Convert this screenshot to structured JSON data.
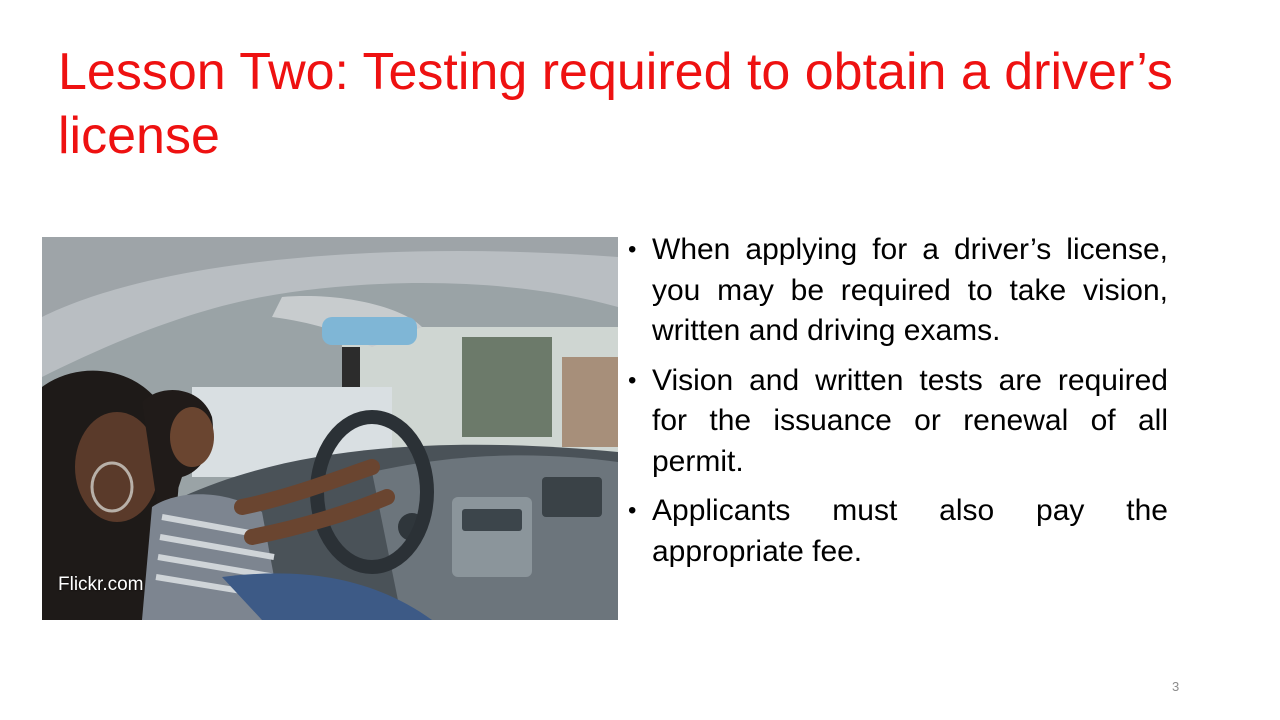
{
  "slide": {
    "title": "Lesson Two: Testing required to obtain a driver’s license",
    "image": {
      "description_icon": "car-interior-photo",
      "credit": "Flickr.com"
    },
    "bullets": [
      "When applying for a driver’s license, you may be required to take vision, written and driving exams.",
      "Vision and written tests are required for the issuance or renewal of all permit.",
      "Applicants must also pay the appropriate fee."
    ],
    "bullet_glyph": "•",
    "page_number": "3"
  },
  "colors": {
    "title": "#ee1111",
    "text": "#000000",
    "page_number": "#8c8c8c"
  }
}
